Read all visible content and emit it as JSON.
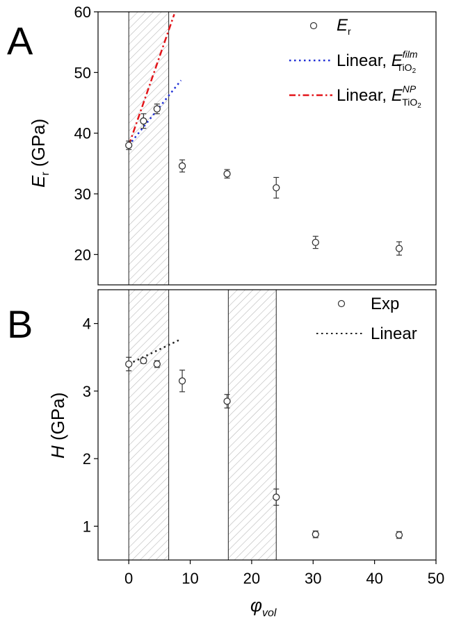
{
  "chart_data": [
    {
      "panel": "A",
      "type": "scatter",
      "ylabel": {
        "symbol": "E",
        "sub": "r",
        "unit": "(GPa)"
      },
      "xlim": [
        -5,
        50
      ],
      "ylim": [
        15,
        60
      ],
      "yticks": [
        20,
        30,
        40,
        50,
        60
      ],
      "shaded_ranges": [
        [
          0,
          6.5
        ]
      ],
      "series": [
        {
          "name": {
            "symbol": "E",
            "sub": "r"
          },
          "kind": "points",
          "x": [
            0,
            2.4,
            4.6,
            8.7,
            16,
            24,
            30.4,
            44
          ],
          "y": [
            38,
            42,
            44,
            34.6,
            33.3,
            31,
            22,
            21
          ],
          "err": [
            0.7,
            1.2,
            0.8,
            1.0,
            0.7,
            1.7,
            1.0,
            1.1
          ]
        },
        {
          "name": {
            "prefix": "Linear, ",
            "symbol": "E",
            "sup": "film",
            "sub": "TiO",
            "sub2": "2"
          },
          "kind": "line",
          "style": "dotted",
          "color": "#1f2fd6",
          "x": [
            0,
            8.5
          ],
          "y": [
            38,
            48.7
          ]
        },
        {
          "name": {
            "prefix": "Linear, ",
            "symbol": "E",
            "sup": "NP",
            "sub": "TiO",
            "sub2": "2"
          },
          "kind": "line",
          "style": "dashdot",
          "color": "#e3151a",
          "x": [
            0,
            7.4
          ],
          "y": [
            38,
            59.6
          ]
        }
      ]
    },
    {
      "panel": "B",
      "type": "scatter",
      "ylabel": {
        "symbol": "H",
        "unit": "(GPa)"
      },
      "xlabel": {
        "symbol": "φ",
        "sub": "vol"
      },
      "xlim": [
        -5,
        50
      ],
      "ylim": [
        0.5,
        4.5
      ],
      "yticks": [
        1,
        2,
        3,
        4
      ],
      "xticks": [
        0,
        10,
        20,
        30,
        40,
        50
      ],
      "shaded_ranges": [
        [
          0,
          6.5
        ],
        [
          16.2,
          24
        ]
      ],
      "series": [
        {
          "name": "Exp",
          "kind": "points",
          "x": [
            0,
            2.4,
            4.6,
            8.7,
            16,
            24,
            30.4,
            44
          ],
          "y": [
            3.4,
            3.45,
            3.4,
            3.15,
            2.85,
            1.43,
            0.88,
            0.87
          ],
          "err": [
            0.1,
            0.04,
            0.05,
            0.16,
            0.1,
            0.12,
            0.05,
            0.05
          ]
        },
        {
          "name": "Linear",
          "kind": "line",
          "style": "dotted",
          "color": "#222222",
          "x": [
            0,
            8.3
          ],
          "y": [
            3.4,
            3.76
          ]
        }
      ]
    }
  ]
}
